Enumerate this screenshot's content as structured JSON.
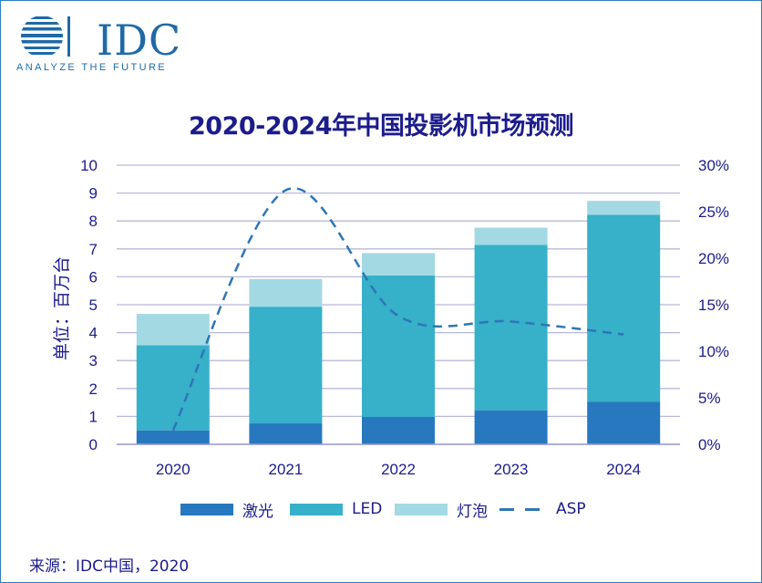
{
  "logo": {
    "text": "IDC",
    "tagline": "ANALYZE THE FUTURE"
  },
  "title": "2020-2024年中国投影机市场预测",
  "source": "来源：IDC中国，2020",
  "colors": {
    "laser": "#2778be",
    "led": "#37b0c9",
    "lamp": "#a3d9e3",
    "asp": "#2e75b6",
    "text": "#1c1c8c",
    "grid": "#b8b8dc"
  },
  "chart_data": {
    "type": "bar",
    "stacked": true,
    "title": "2020-2024年中国投影机市场预测",
    "categories": [
      "2020",
      "2021",
      "2022",
      "2023",
      "2024"
    ],
    "series": [
      {
        "name": "激光",
        "values": [
          0.5,
          0.75,
          0.98,
          1.22,
          1.52
        ]
      },
      {
        "name": "LED",
        "values": [
          3.05,
          4.18,
          5.07,
          5.92,
          6.7
        ]
      },
      {
        "name": "灯泡",
        "values": [
          1.12,
          0.99,
          0.8,
          0.62,
          0.5
        ]
      }
    ],
    "line_series": {
      "name": "ASP",
      "style": "dashed",
      "axis": "right",
      "values": [
        1.5,
        27.3,
        13.8,
        13.2,
        11.8
      ]
    },
    "ylabel": "单位：百万台",
    "ylim": [
      0,
      10
    ],
    "yticks": [
      "0",
      "1",
      "2",
      "3",
      "4",
      "5",
      "6",
      "7",
      "8",
      "9",
      "10"
    ],
    "y2lim": [
      0,
      30
    ],
    "y2ticks": [
      "0%",
      "5%",
      "10%",
      "15%",
      "20%",
      "25%",
      "30%"
    ],
    "grid": true,
    "legend": [
      "激光",
      "LED",
      "灯泡",
      "ASP"
    ],
    "legend_position": "bottom"
  }
}
